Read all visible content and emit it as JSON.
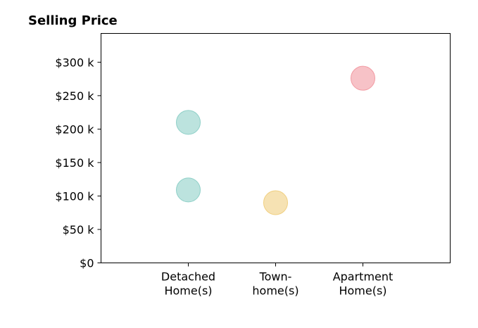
{
  "chart_data": {
    "type": "scatter",
    "title": "Selling Price",
    "xlabel": "",
    "ylabel": "",
    "categories": [
      [
        "Detached",
        "Home(s)"
      ],
      [
        "Town-",
        "home(s)"
      ],
      [
        "Apartment",
        "Home(s)"
      ]
    ],
    "y_ticks": [
      {
        "value": 0,
        "label": "$0"
      },
      {
        "value": 50000,
        "label": "$50 k"
      },
      {
        "value": 100000,
        "label": "$100 k"
      },
      {
        "value": 150000,
        "label": "$150 k"
      },
      {
        "value": 200000,
        "label": "$200 k"
      },
      {
        "value": 250000,
        "label": "$250 k"
      },
      {
        "value": 300000,
        "label": "$300 k"
      }
    ],
    "ylim": [
      0,
      343000
    ],
    "xlim": [
      -1,
      3
    ],
    "grid": false,
    "points": [
      {
        "category": "Detached Home(s)",
        "x": 0,
        "y": 210000,
        "color": "#8fd0c8"
      },
      {
        "category": "Detached Home(s)",
        "x": 0,
        "y": 109000,
        "color": "#8fd0c8"
      },
      {
        "category": "Town-home(s)",
        "x": 1,
        "y": 90000,
        "color": "#f0cf80"
      },
      {
        "category": "Apartment Home(s)",
        "x": 2,
        "y": 276000,
        "color": "#f29aa2"
      }
    ]
  }
}
